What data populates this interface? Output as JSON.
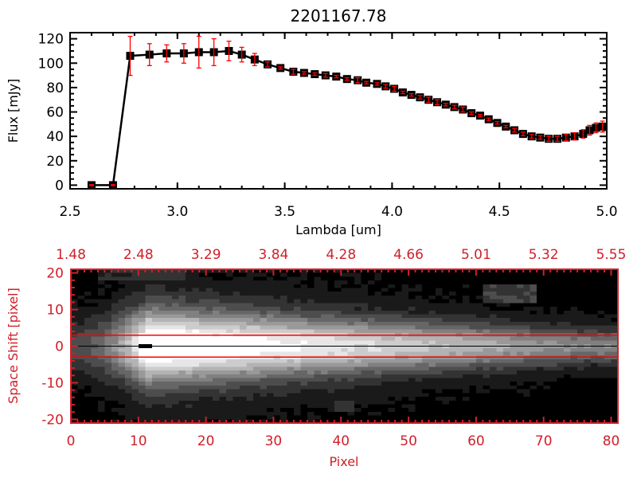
{
  "chart_data": [
    {
      "type": "line",
      "title": "2201167.78",
      "xlabel": "Lambda [um]",
      "ylabel": "Flux [mJy]",
      "xlim": [
        2.5,
        5.0
      ],
      "ylim": [
        -3,
        125
      ],
      "xticks": [
        "2.5",
        "3.0",
        "3.5",
        "4.0",
        "4.5",
        "5.0"
      ],
      "xtick_values": [
        2.5,
        3.0,
        3.5,
        4.0,
        4.5,
        5.0
      ],
      "yticks": [
        "0",
        "20",
        "40",
        "60",
        "80",
        "100",
        "120"
      ],
      "ytick_values": [
        0,
        20,
        40,
        60,
        80,
        100,
        120
      ],
      "series": [
        {
          "name": "flux",
          "color": "#000000",
          "error_color": "#ff0000",
          "x": [
            2.6,
            2.7,
            2.78,
            2.87,
            2.95,
            3.03,
            3.1,
            3.17,
            3.24,
            3.3,
            3.36,
            3.42,
            3.48,
            3.54,
            3.59,
            3.64,
            3.69,
            3.74,
            3.79,
            3.84,
            3.88,
            3.93,
            3.97,
            4.01,
            4.05,
            4.09,
            4.13,
            4.17,
            4.21,
            4.25,
            4.29,
            4.33,
            4.37,
            4.41,
            4.45,
            4.49,
            4.53,
            4.57,
            4.61,
            4.65,
            4.69,
            4.73,
            4.77,
            4.81,
            4.85,
            4.89,
            4.92,
            4.95,
            4.98
          ],
          "y": [
            0,
            0,
            106,
            107,
            108,
            108,
            109,
            109,
            110,
            107,
            103,
            99,
            96,
            93,
            92,
            91,
            90,
            89,
            87,
            86,
            84,
            83,
            81,
            79,
            76,
            74,
            72,
            70,
            68,
            66,
            64,
            62,
            59,
            57,
            54,
            51,
            48,
            45,
            42,
            40,
            39,
            38,
            38,
            39,
            40,
            42,
            45,
            47,
            48
          ],
          "err": [
            0.5,
            0.5,
            16,
            9,
            7,
            8,
            13,
            11,
            8,
            6,
            5,
            2,
            1,
            2,
            1,
            1,
            1.5,
            1,
            1,
            2,
            1,
            1,
            1.5,
            2,
            1,
            1,
            1.5,
            2,
            2,
            1,
            1.5,
            2,
            1,
            1,
            1,
            1,
            1,
            1.5,
            1.5,
            1.5,
            1.5,
            2,
            2,
            2.5,
            3,
            3.5,
            4,
            4,
            4.5
          ]
        }
      ]
    },
    {
      "type": "heatmap",
      "xlabel": "Pixel",
      "ylabel": "Space Shift [pixel]",
      "xlim": [
        0,
        81
      ],
      "ylim": [
        -21,
        21
      ],
      "xticks": [
        "0",
        "10",
        "20",
        "30",
        "40",
        "50",
        "60",
        "70",
        "80"
      ],
      "xtick_values": [
        0,
        10,
        20,
        30,
        40,
        50,
        60,
        70,
        80
      ],
      "yticks": [
        "-20",
        "-10",
        "0",
        "10",
        "20"
      ],
      "ytick_values": [
        -20,
        -10,
        0,
        10,
        20
      ],
      "top_axis_ticks": [
        "1.48",
        "2.48",
        "3.29",
        "3.84",
        "4.28",
        "4.66",
        "5.01",
        "5.32",
        "5.55"
      ],
      "extraction_window": [
        -3,
        3
      ],
      "trace_center": 0,
      "axis_color": "#d0202a",
      "window_color": "#ff0000"
    }
  ]
}
